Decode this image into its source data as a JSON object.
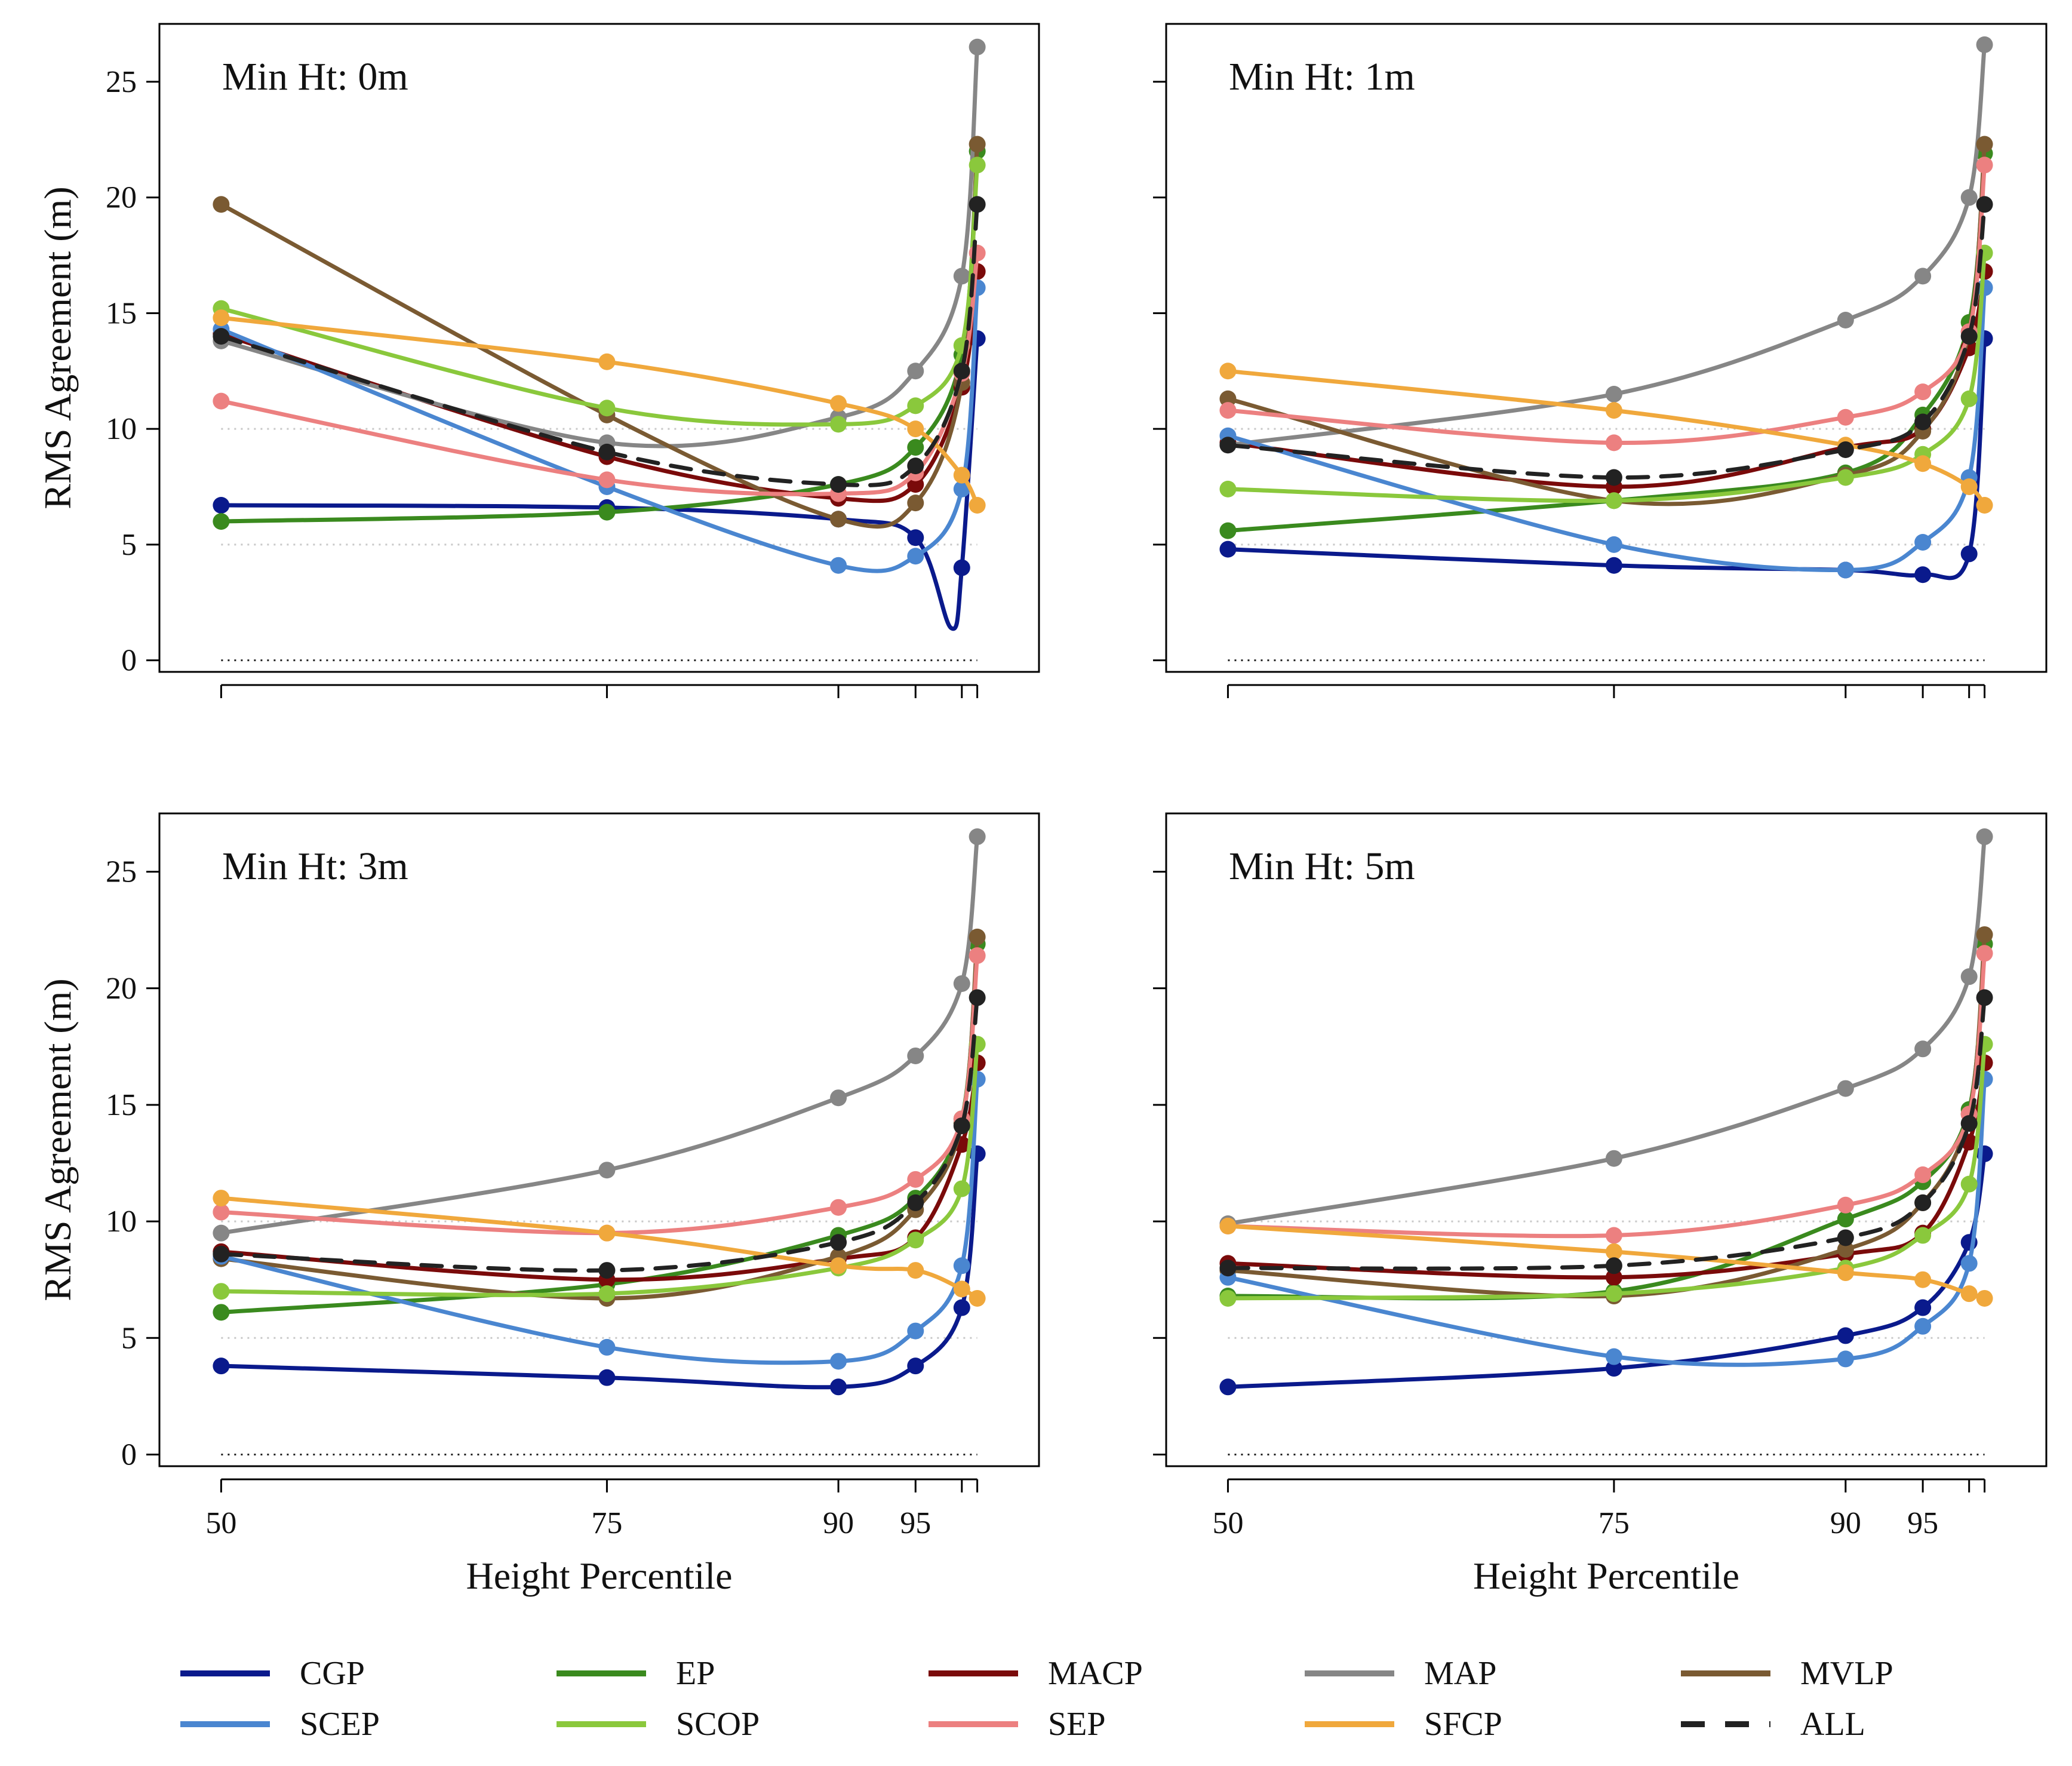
{
  "chart_data": {
    "type": "line",
    "ylabel": "RMS Agreement (m)",
    "xlabel": "Height Percentile",
    "x": [
      50,
      75,
      90,
      95,
      98,
      99
    ],
    "xticks": [
      50,
      75,
      90,
      95,
      98,
      99
    ],
    "xtick_labels": [
      "50",
      "75",
      "90",
      "95",
      "",
      ""
    ],
    "xlim": [
      46,
      103
    ],
    "ylim": [
      -0.5,
      27.5
    ],
    "yticks": [
      0,
      5,
      10,
      15,
      20,
      25
    ],
    "ytick_labels": [
      "0",
      "5",
      "10",
      "15",
      "20",
      "25"
    ],
    "ref_lines": [
      5,
      10
    ],
    "zero_line": 0,
    "legend": {
      "placement": "bottom",
      "entries": [
        {
          "name": "CGP",
          "color": "#0a1a8c",
          "dash": false
        },
        {
          "name": "EP",
          "color": "#3a8a1e",
          "dash": false
        },
        {
          "name": "MACP",
          "color": "#7a0a0a",
          "dash": false
        },
        {
          "name": "MAP",
          "color": "#868686",
          "dash": false
        },
        {
          "name": "MVLP",
          "color": "#7a5a32",
          "dash": false
        },
        {
          "name": "SCEP",
          "color": "#4a86d0",
          "dash": false
        },
        {
          "name": "SCOP",
          "color": "#8ac83c",
          "dash": false
        },
        {
          "name": "SEP",
          "color": "#ec8080",
          "dash": false
        },
        {
          "name": "SFCP",
          "color": "#f0a83c",
          "dash": false
        },
        {
          "name": "ALL",
          "color": "#222222",
          "dash": true
        }
      ]
    },
    "panels": [
      {
        "title": "Min Ht: 0m",
        "series": [
          {
            "name": "CGP",
            "values": [
              6.7,
              6.6,
              6.1,
              5.3,
              4.0,
              13.9
            ],
            "dip": {
              "x": 97.3,
              "y": 1.4
            }
          },
          {
            "name": "EP",
            "values": [
              6.0,
              6.4,
              7.6,
              9.2,
              13.2,
              22.0
            ]
          },
          {
            "name": "MACP",
            "values": [
              14.1,
              8.8,
              7.0,
              7.6,
              11.8,
              16.8
            ]
          },
          {
            "name": "MAP",
            "values": [
              13.8,
              9.4,
              10.5,
              12.5,
              16.6,
              26.5
            ]
          },
          {
            "name": "MVLP",
            "values": [
              19.7,
              10.6,
              6.1,
              6.8,
              12.0,
              22.3
            ]
          },
          {
            "name": "SCEP",
            "values": [
              14.3,
              7.5,
              4.1,
              4.5,
              7.4,
              16.1
            ]
          },
          {
            "name": "SCOP",
            "values": [
              15.2,
              10.9,
              10.2,
              11.0,
              13.6,
              21.4
            ]
          },
          {
            "name": "SEP",
            "values": [
              11.2,
              7.8,
              7.2,
              8.1,
              12.4,
              17.6
            ]
          },
          {
            "name": "SFCP",
            "values": [
              14.8,
              12.9,
              11.1,
              10.0,
              8.0,
              6.7
            ]
          },
          {
            "name": "ALL",
            "values": [
              14.0,
              9.0,
              7.6,
              8.4,
              12.5,
              19.7
            ]
          }
        ]
      },
      {
        "title": "Min Ht: 1m",
        "series": [
          {
            "name": "CGP",
            "values": [
              4.8,
              4.1,
              3.9,
              3.7,
              4.6,
              13.9
            ]
          },
          {
            "name": "EP",
            "values": [
              5.6,
              6.9,
              8.1,
              10.6,
              14.6,
              21.9
            ]
          },
          {
            "name": "MACP",
            "values": [
              9.4,
              7.5,
              9.2,
              10.0,
              13.5,
              16.8
            ]
          },
          {
            "name": "MAP",
            "values": [
              9.3,
              11.5,
              14.7,
              16.6,
              20.0,
              26.6
            ]
          },
          {
            "name": "MVLP",
            "values": [
              11.3,
              6.9,
              8.0,
              9.9,
              14.2,
              22.3
            ]
          },
          {
            "name": "SCEP",
            "values": [
              9.7,
              5.0,
              3.9,
              5.1,
              7.9,
              16.1
            ]
          },
          {
            "name": "SCOP",
            "values": [
              7.4,
              6.9,
              7.9,
              8.9,
              11.3,
              17.6
            ]
          },
          {
            "name": "SEP",
            "values": [
              10.8,
              9.4,
              10.5,
              11.6,
              14.2,
              21.4
            ]
          },
          {
            "name": "SFCP",
            "values": [
              12.5,
              10.8,
              9.3,
              8.5,
              7.5,
              6.7
            ]
          },
          {
            "name": "ALL",
            "values": [
              9.3,
              7.9,
              9.1,
              10.3,
              14.0,
              19.7
            ]
          }
        ]
      },
      {
        "title": "Min Ht: 3m",
        "series": [
          {
            "name": "CGP",
            "values": [
              3.8,
              3.3,
              2.9,
              3.8,
              6.3,
              12.9
            ]
          },
          {
            "name": "EP",
            "values": [
              6.1,
              7.3,
              9.4,
              11.0,
              14.4,
              21.9
            ]
          },
          {
            "name": "MACP",
            "values": [
              8.7,
              7.5,
              8.4,
              9.3,
              13.3,
              16.8
            ]
          },
          {
            "name": "MAP",
            "values": [
              9.5,
              12.2,
              15.3,
              17.1,
              20.2,
              26.5
            ]
          },
          {
            "name": "MVLP",
            "values": [
              8.4,
              6.7,
              8.5,
              10.5,
              14.2,
              22.2
            ]
          },
          {
            "name": "SCEP",
            "values": [
              8.5,
              4.6,
              4.0,
              5.3,
              8.1,
              16.1
            ]
          },
          {
            "name": "SCOP",
            "values": [
              7.0,
              6.9,
              8.0,
              9.2,
              11.4,
              17.6
            ]
          },
          {
            "name": "SEP",
            "values": [
              10.4,
              9.5,
              10.6,
              11.8,
              14.4,
              21.4
            ]
          },
          {
            "name": "SFCP",
            "values": [
              11.0,
              9.5,
              8.1,
              7.9,
              7.1,
              6.7
            ]
          },
          {
            "name": "ALL",
            "values": [
              8.6,
              7.9,
              9.1,
              10.8,
              14.1,
              19.6
            ]
          }
        ]
      },
      {
        "title": "Min Ht: 5m",
        "series": [
          {
            "name": "CGP",
            "values": [
              2.9,
              3.7,
              5.1,
              6.3,
              9.1,
              12.9
            ]
          },
          {
            "name": "EP",
            "values": [
              6.8,
              7.0,
              10.1,
              11.7,
              14.8,
              21.9
            ]
          },
          {
            "name": "MACP",
            "values": [
              8.2,
              7.6,
              8.6,
              9.5,
              13.4,
              16.8
            ]
          },
          {
            "name": "MAP",
            "values": [
              9.9,
              12.7,
              15.7,
              17.4,
              20.5,
              26.5
            ]
          },
          {
            "name": "MVLP",
            "values": [
              7.9,
              6.8,
              8.8,
              10.8,
              14.6,
              22.3
            ]
          },
          {
            "name": "SCEP",
            "values": [
              7.6,
              4.2,
              4.1,
              5.5,
              8.2,
              16.1
            ]
          },
          {
            "name": "SCOP",
            "values": [
              6.7,
              6.9,
              8.0,
              9.4,
              11.6,
              17.6
            ]
          },
          {
            "name": "SEP",
            "values": [
              9.8,
              9.4,
              10.7,
              12.0,
              14.6,
              21.5
            ]
          },
          {
            "name": "SFCP",
            "values": [
              9.8,
              8.7,
              7.8,
              7.5,
              6.9,
              6.7
            ]
          },
          {
            "name": "ALL",
            "values": [
              8.0,
              8.1,
              9.3,
              10.8,
              14.2,
              19.6
            ]
          }
        ]
      }
    ]
  }
}
